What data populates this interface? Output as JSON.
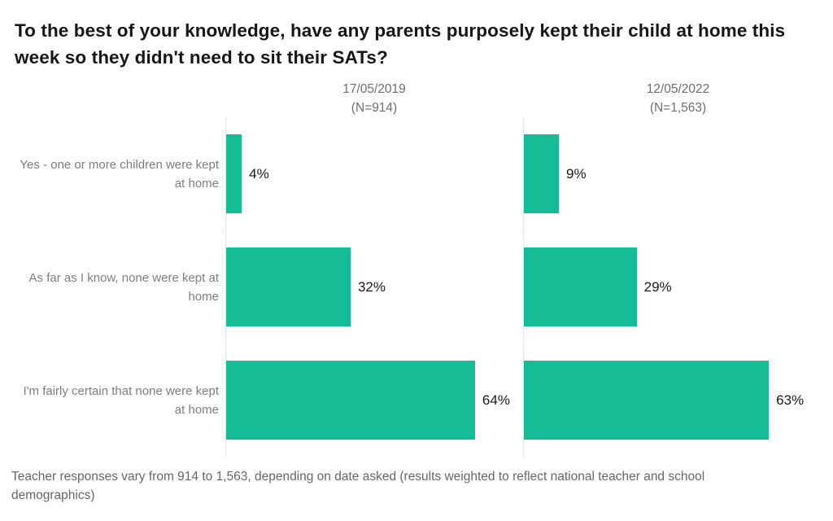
{
  "title": "To the best of your knowledge, have any parents purposely kept their child at home this week so they didn't need to sit their SATs?",
  "footer": "Teacher responses vary from 914 to 1,563, depending on date asked (results weighted to reflect national teacher and school demographics)",
  "colors": {
    "bar": "#16bc95",
    "axis_line": "#d6d6d6",
    "title_text": "#161616",
    "category_text": "#7e7e7e",
    "header_text": "#6e6e6e",
    "value_text": "#191919",
    "footer_text": "#666666"
  },
  "chart_data": {
    "type": "bar",
    "orientation": "horizontal",
    "title": "To the best of your knowledge, have any parents purposely kept their child at home this week so they didn't need to sit their SATs?",
    "categories": [
      "Yes - one or more children were kept at home",
      "As far as I know, none were kept at home",
      "I'm fairly certain that none were kept at home"
    ],
    "series": [
      {
        "name": "17/05/2019",
        "n_label": "(N=914)",
        "values": [
          4,
          32,
          64
        ]
      },
      {
        "name": "12/05/2022",
        "n_label": "(N=1,563)",
        "values": [
          9,
          29,
          63
        ]
      }
    ],
    "value_suffix": "%",
    "xlim": [
      0,
      80
    ],
    "grid": false,
    "legend": "none",
    "value_labels": true,
    "caption": "Teacher responses vary from 914 to 1,563, depending on date asked (results weighted to reflect national teacher and school demographics)"
  }
}
